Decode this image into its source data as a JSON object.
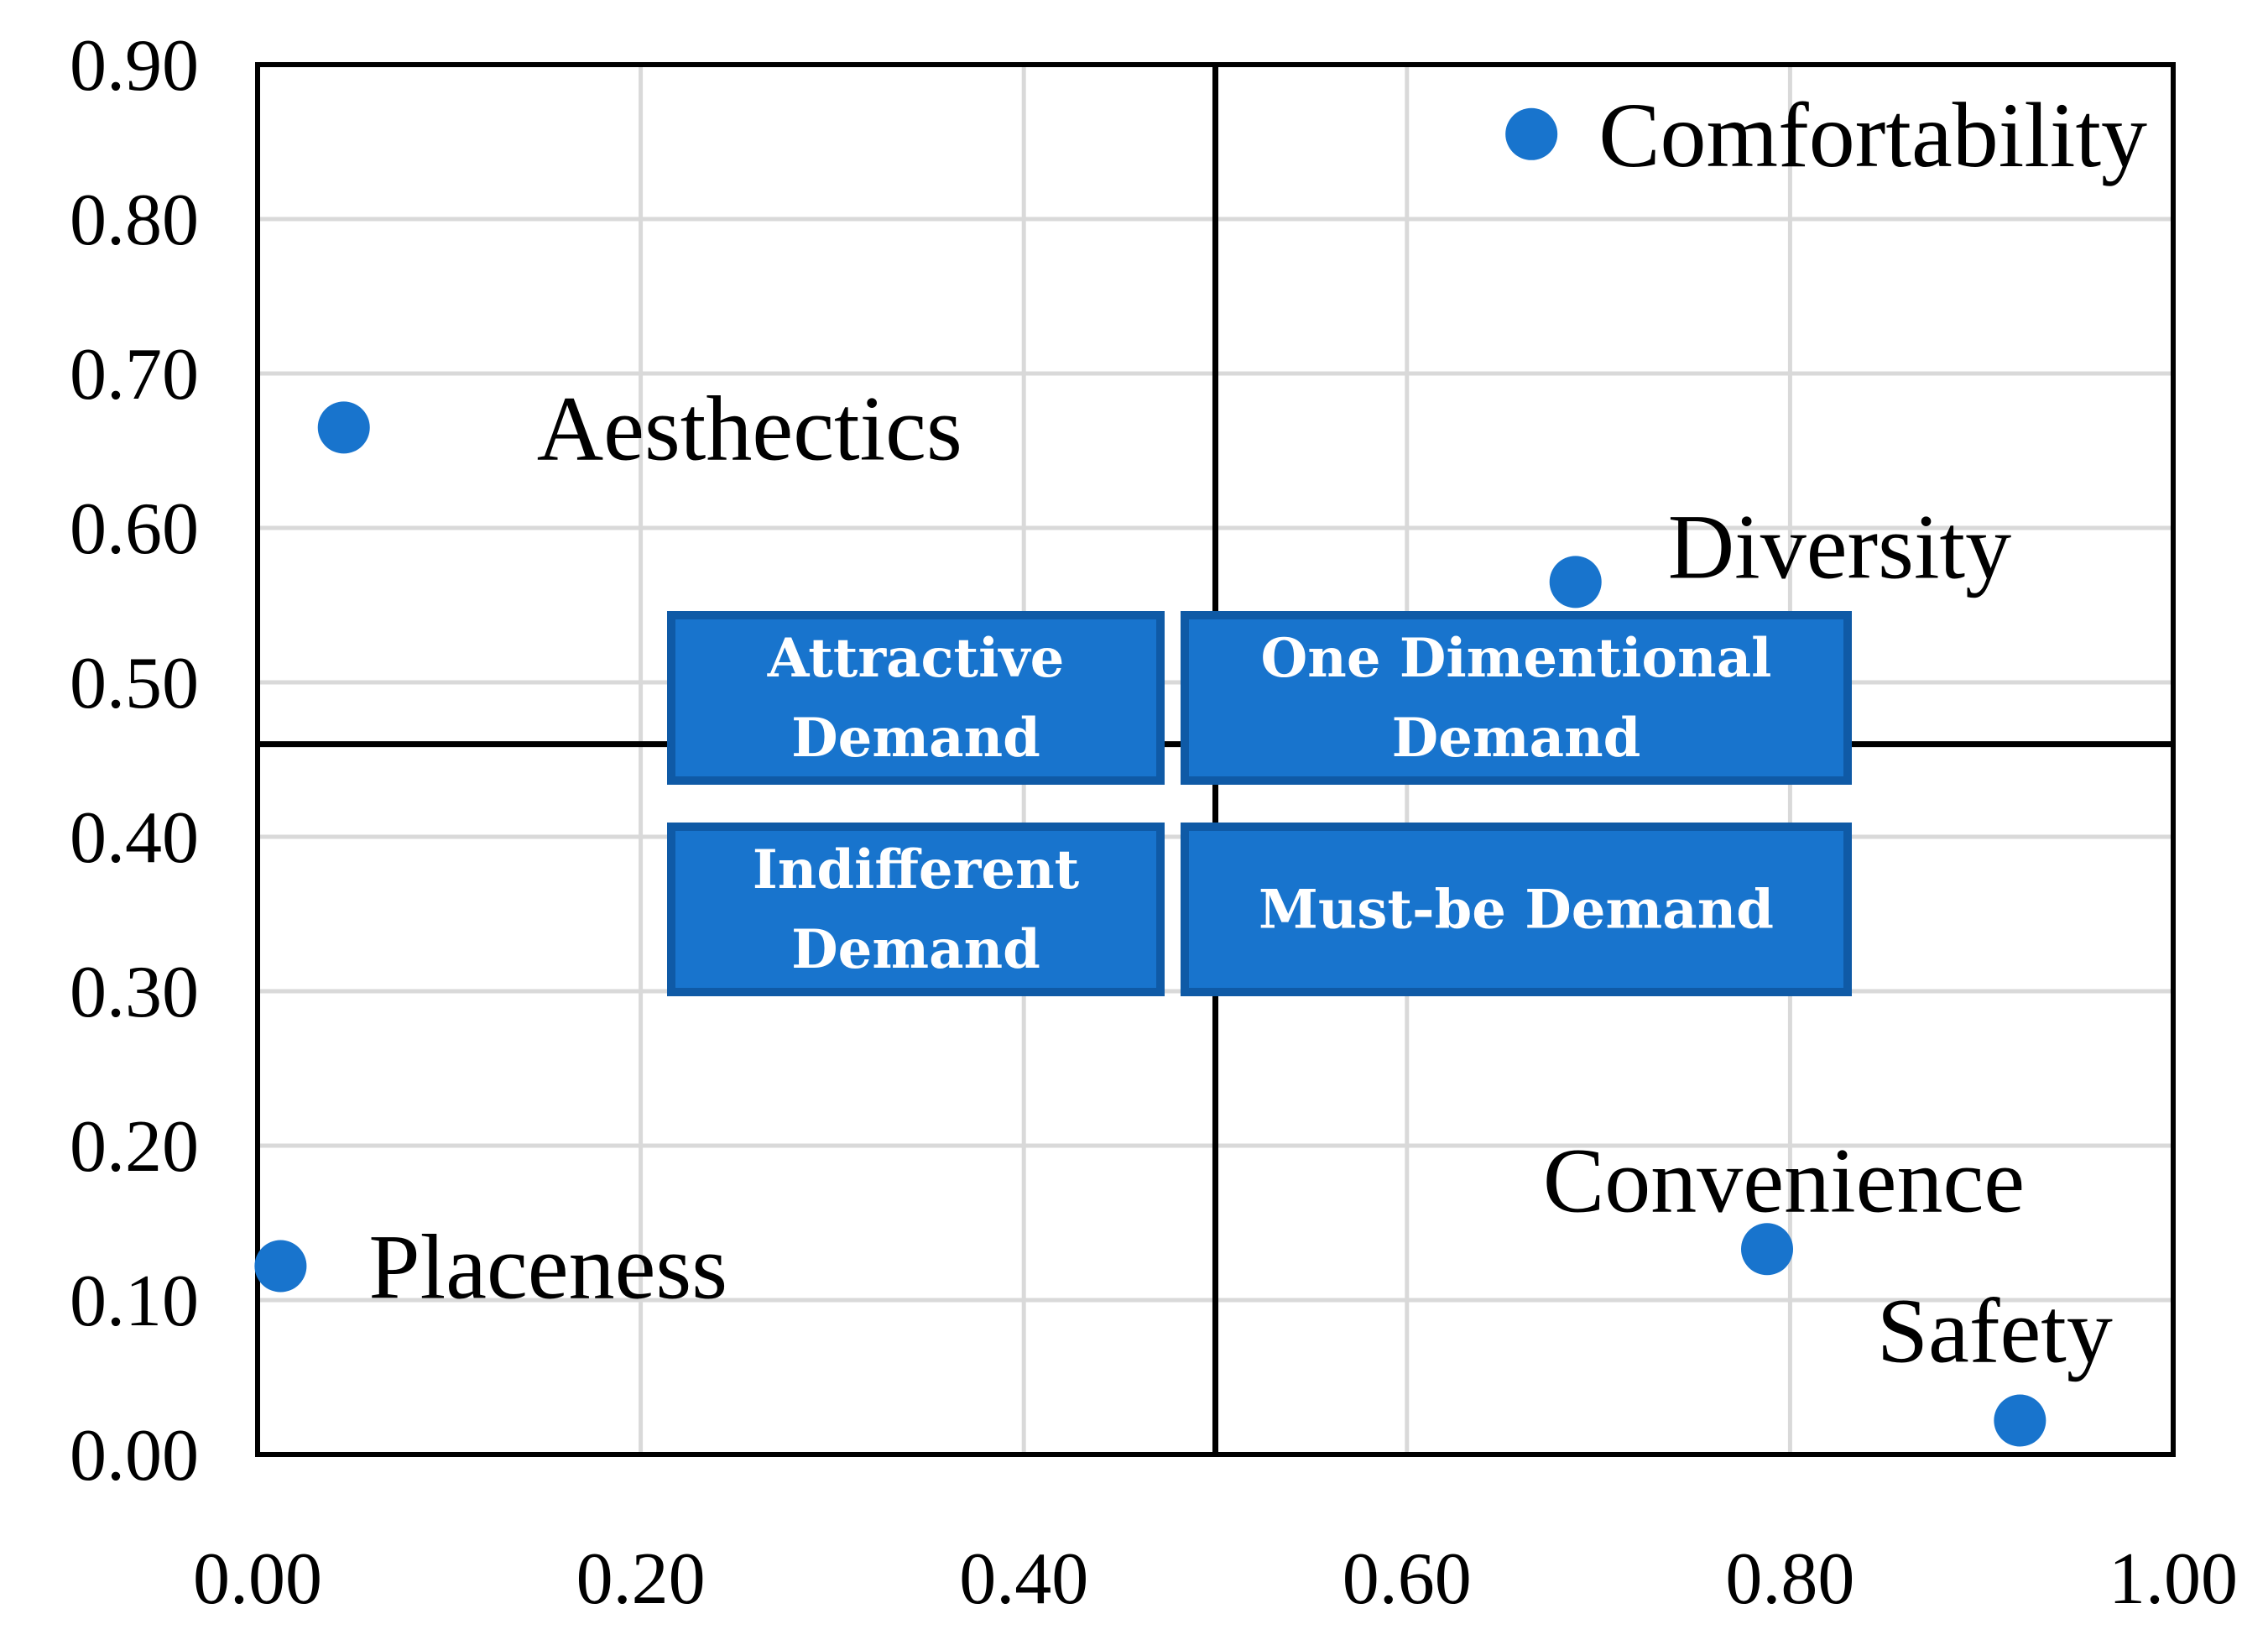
{
  "chart_data": {
    "type": "scatter",
    "title": "",
    "xlabel": "",
    "ylabel": "",
    "xlim": [
      0,
      1.0
    ],
    "ylim": [
      0,
      0.9
    ],
    "x_ticks": [
      "0.00",
      "0.20",
      "0.40",
      "0.60",
      "0.80",
      "1.00"
    ],
    "y_ticks": [
      "0.00",
      "0.10",
      "0.20",
      "0.30",
      "0.40",
      "0.50",
      "0.60",
      "0.70",
      "0.80",
      "0.90"
    ],
    "grid": true,
    "point_color": "#1874CD",
    "quadrant_divider": {
      "x": 0.5,
      "y": 0.46
    },
    "points": [
      {
        "label": "Comfortability",
        "x": 0.665,
        "y": 0.855
      },
      {
        "label": "Aesthectics",
        "x": 0.045,
        "y": 0.665
      },
      {
        "label": "Diversity",
        "x": 0.688,
        "y": 0.565
      },
      {
        "label": "Placeness",
        "x": 0.012,
        "y": 0.122
      },
      {
        "label": "Convenience",
        "x": 0.788,
        "y": 0.133
      },
      {
        "label": "Safety",
        "x": 0.92,
        "y": 0.022
      }
    ],
    "quadrant_labels": [
      {
        "id": "attractive",
        "lines": [
          "Attractive",
          "Demand"
        ]
      },
      {
        "id": "one-dimensional",
        "lines": [
          "One Dimentional",
          "Demand"
        ]
      },
      {
        "id": "indifferent",
        "lines": [
          "Indifferent",
          "Demand"
        ]
      },
      {
        "id": "must-be",
        "lines": [
          "Must-be Demand"
        ]
      }
    ]
  }
}
